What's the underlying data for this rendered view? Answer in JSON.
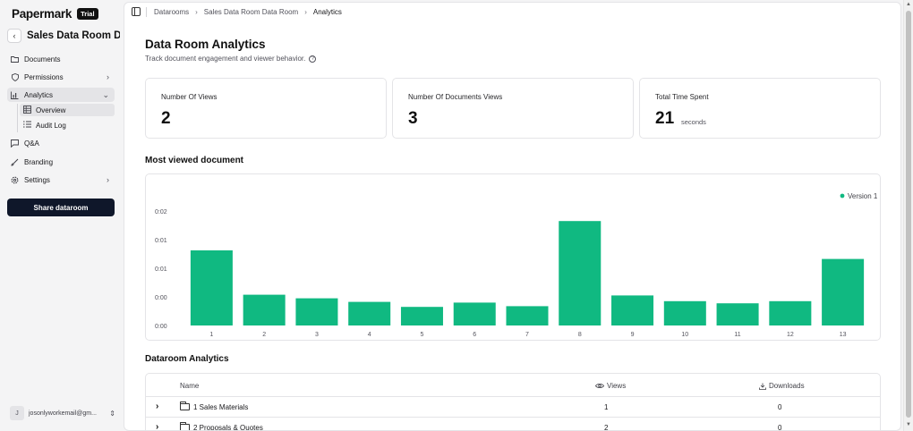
{
  "brand": {
    "name": "Papermark",
    "badge": "Trial"
  },
  "dataroom": {
    "title": "Sales Data Room Data"
  },
  "sidebar": {
    "items": [
      {
        "label": "Documents",
        "icon": "folder-icon"
      },
      {
        "label": "Permissions",
        "icon": "shield-icon"
      },
      {
        "label": "Analytics",
        "icon": "bar-chart-icon"
      },
      {
        "label": "Q&A",
        "icon": "message-icon"
      },
      {
        "label": "Branding",
        "icon": "brush-icon"
      },
      {
        "label": "Settings",
        "icon": "gear-icon"
      }
    ],
    "analytics_sub": [
      {
        "label": "Overview",
        "icon": "table-icon"
      },
      {
        "label": "Audit Log",
        "icon": "list-icon"
      }
    ],
    "share_label": "Share dataroom",
    "user_email": "josonlyworkemail@gm...",
    "user_initial": "J"
  },
  "breadcrumb": {
    "items": [
      "Datarooms",
      "Sales Data Room Data Room",
      "Analytics"
    ]
  },
  "page": {
    "title": "Data Room Analytics",
    "subtitle": "Track document engagement and viewer behavior."
  },
  "stats": [
    {
      "label": "Number Of Views",
      "value": "2",
      "unit": ""
    },
    {
      "label": "Number Of Documents Views",
      "value": "3",
      "unit": ""
    },
    {
      "label": "Total Time Spent",
      "value": "21",
      "unit": "seconds"
    }
  ],
  "chart_section_title": "Most viewed document",
  "chart_data": {
    "type": "bar",
    "categories": [
      "1",
      "2",
      "3",
      "4",
      "5",
      "6",
      "7",
      "8",
      "9",
      "10",
      "11",
      "12",
      "13"
    ],
    "series": [
      {
        "name": "Version 1",
        "values": [
          0.0105,
          0.0043,
          0.0038,
          0.0033,
          0.0026,
          0.0032,
          0.0027,
          0.0146,
          0.0042,
          0.0034,
          0.0031,
          0.0034,
          0.0093
        ]
      }
    ],
    "ytick_labels": [
      "0:00",
      "0:00",
      "0:01",
      "0:01",
      "0:02"
    ],
    "ylim": [
      0,
      0.016
    ],
    "legend_position": "top-right",
    "color": "#10b981"
  },
  "table_section_title": "Dataroom Analytics",
  "table": {
    "headers": {
      "name": "Name",
      "views": "Views",
      "downloads": "Downloads"
    },
    "rows": [
      {
        "name": "1 Sales Materials",
        "views": "1",
        "downloads": "0"
      },
      {
        "name": "2 Proposals & Quotes",
        "views": "2",
        "downloads": "0"
      }
    ]
  }
}
